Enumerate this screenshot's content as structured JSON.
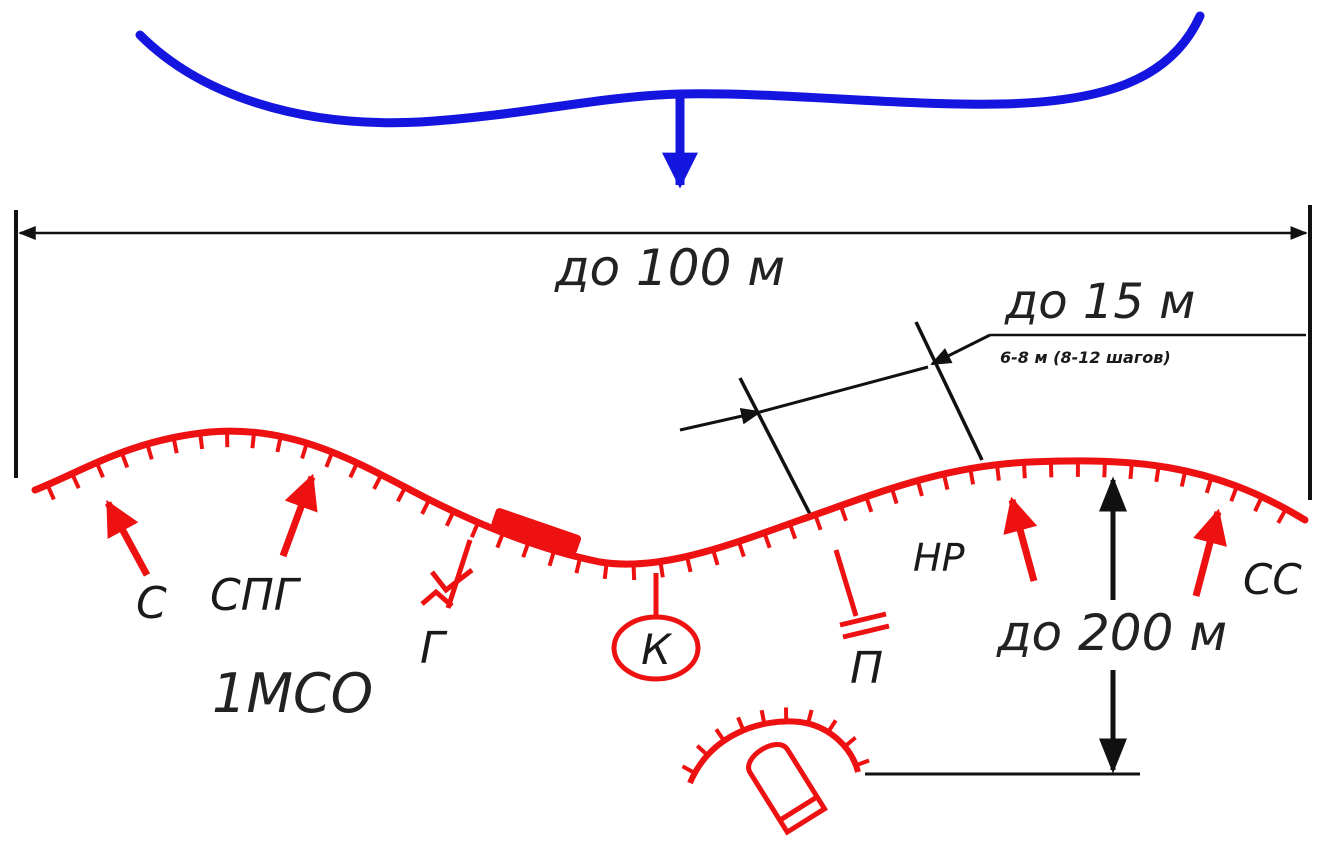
{
  "colors": {
    "enemy": "#1515e0",
    "friendly": "#ee1111",
    "dimension": "#111111"
  },
  "labels": {
    "width_front": "до 100 м",
    "interval": "до 15 м",
    "interval_note": "6-8 м (8-12 шагов)",
    "depth": "до 200 м",
    "unit": "1МСО"
  },
  "positions": {
    "s": "С",
    "spg": "СПГ",
    "g": "Г",
    "k": "К",
    "p": "П",
    "nr": "НР",
    "ss": "СС"
  }
}
